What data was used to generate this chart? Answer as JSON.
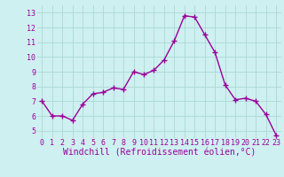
{
  "x": [
    0,
    1,
    2,
    3,
    4,
    5,
    6,
    7,
    8,
    9,
    10,
    11,
    12,
    13,
    14,
    15,
    16,
    17,
    18,
    19,
    20,
    21,
    22,
    23
  ],
  "y": [
    7.0,
    6.0,
    6.0,
    5.7,
    6.8,
    7.5,
    7.6,
    7.9,
    7.8,
    9.0,
    8.8,
    9.1,
    9.8,
    11.1,
    12.8,
    12.7,
    11.5,
    10.3,
    8.1,
    7.1,
    7.2,
    7.0,
    6.1,
    4.7
  ],
  "line_color": "#990099",
  "marker": "+",
  "marker_size": 4,
  "background_color": "#cff0f0",
  "grid_color": "#aad8d8",
  "xlabel": "Windchill (Refroidissement éolien,°C)",
  "xlabel_color": "#990099",
  "xlabel_fontsize": 7,
  "tick_color": "#990099",
  "tick_fontsize": 6,
  "ylim": [
    4.5,
    13.5
  ],
  "xlim": [
    -0.5,
    23.5
  ],
  "yticks": [
    5,
    6,
    7,
    8,
    9,
    10,
    11,
    12,
    13
  ],
  "xticks": [
    0,
    1,
    2,
    3,
    4,
    5,
    6,
    7,
    8,
    9,
    10,
    11,
    12,
    13,
    14,
    15,
    16,
    17,
    18,
    19,
    20,
    21,
    22,
    23
  ]
}
